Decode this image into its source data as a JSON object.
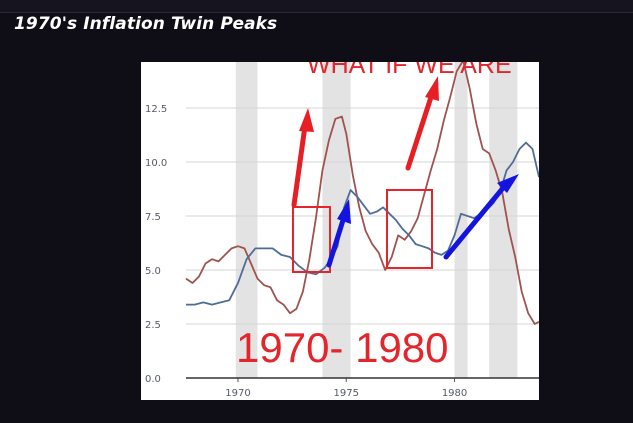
{
  "page": {
    "title": "1970's Inflation Twin Peaks"
  },
  "chart_data": {
    "type": "line",
    "title": "",
    "xlabel": "",
    "ylabel": "",
    "xlim": [
      1967.6,
      1983.9
    ],
    "ylim": [
      0,
      15
    ],
    "x_ticks": [
      1970,
      1975,
      1980
    ],
    "y_ticks": [
      0.0,
      2.5,
      5.0,
      7.5,
      10.0,
      12.5
    ],
    "y_tick_labels": [
      "0.0",
      "2.5",
      "5.0",
      "7.5",
      "10.0",
      "12.5"
    ],
    "x_tick_labels": [
      "1970",
      "1975",
      "1980"
    ],
    "grid": "horizontal",
    "legend": "none",
    "recession_bands": [
      [
        1969.9,
        1970.9
      ],
      [
        1973.9,
        1975.2
      ],
      [
        1980.0,
        1980.6
      ],
      [
        1981.6,
        1982.9
      ]
    ],
    "series": [
      {
        "color": "#a0524f",
        "x": [
          1967.6,
          1967.9,
          1968.2,
          1968.5,
          1968.8,
          1969.1,
          1969.4,
          1969.7,
          1970.0,
          1970.3,
          1970.6,
          1970.9,
          1971.2,
          1971.5,
          1971.8,
          1972.1,
          1972.4,
          1972.7,
          1973.0,
          1973.3,
          1973.6,
          1973.9,
          1974.2,
          1974.5,
          1974.8,
          1975.0,
          1975.3,
          1975.6,
          1975.9,
          1976.2,
          1976.5,
          1976.8,
          1977.1,
          1977.4,
          1977.7,
          1978.0,
          1978.3,
          1978.6,
          1978.9,
          1979.2,
          1979.5,
          1979.8,
          1980.1,
          1980.4,
          1980.7,
          1981.0,
          1981.3,
          1981.6,
          1981.9,
          1982.2,
          1982.5,
          1982.8,
          1983.1,
          1983.4,
          1983.7,
          1983.9
        ],
        "values": [
          4.6,
          4.4,
          4.7,
          5.3,
          5.5,
          5.4,
          5.7,
          6.0,
          6.1,
          6.0,
          5.3,
          4.6,
          4.3,
          4.2,
          3.6,
          3.4,
          3.0,
          3.2,
          4.0,
          5.5,
          7.4,
          9.6,
          11.0,
          12.0,
          12.1,
          11.3,
          9.4,
          7.9,
          6.8,
          6.2,
          5.8,
          5.0,
          5.6,
          6.6,
          6.4,
          6.8,
          7.4,
          8.5,
          9.6,
          10.6,
          11.9,
          13.0,
          14.2,
          14.7,
          13.4,
          11.8,
          10.6,
          10.4,
          9.6,
          8.6,
          6.9,
          5.6,
          4.0,
          3.0,
          2.5,
          2.6
        ]
      },
      {
        "color": "#4f6c98",
        "x": [
          1967.6,
          1968.0,
          1968.4,
          1968.8,
          1969.2,
          1969.6,
          1970.0,
          1970.4,
          1970.8,
          1971.2,
          1971.6,
          1972.0,
          1972.4,
          1972.8,
          1973.2,
          1973.6,
          1974.0,
          1974.3,
          1974.6,
          1974.9,
          1975.2,
          1975.5,
          1975.8,
          1976.1,
          1976.4,
          1976.7,
          1977.0,
          1977.3,
          1977.6,
          1977.9,
          1978.2,
          1978.5,
          1978.8,
          1979.1,
          1979.4,
          1979.7,
          1980.0,
          1980.3,
          1980.6,
          1980.9,
          1981.2,
          1981.5,
          1981.8,
          1982.1,
          1982.4,
          1982.7,
          1983.0,
          1983.3,
          1983.6,
          1983.9
        ],
        "values": [
          3.4,
          3.4,
          3.5,
          3.4,
          3.5,
          3.6,
          4.4,
          5.5,
          6.0,
          6.0,
          6.0,
          5.7,
          5.6,
          5.2,
          4.9,
          4.8,
          5.1,
          5.5,
          6.1,
          7.9,
          8.7,
          8.4,
          8.0,
          7.6,
          7.7,
          7.9,
          7.6,
          7.3,
          6.9,
          6.6,
          6.2,
          6.1,
          6.0,
          5.8,
          5.7,
          5.9,
          6.6,
          7.6,
          7.5,
          7.4,
          7.6,
          7.8,
          8.1,
          8.6,
          9.6,
          10.0,
          10.6,
          10.9,
          10.6,
          9.3
        ]
      }
    ],
    "annotations": {
      "bottom_text": "1970- 1980",
      "top_text": "WHAT IF WE ARE"
    }
  }
}
